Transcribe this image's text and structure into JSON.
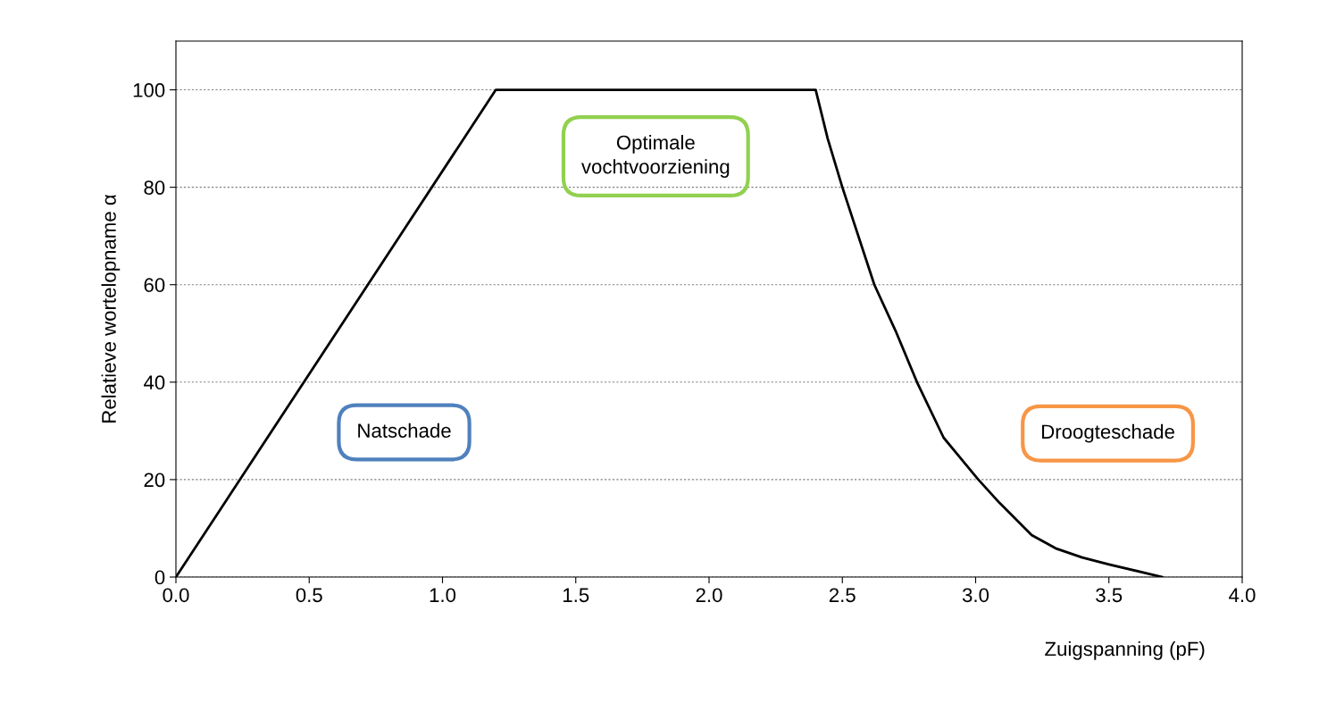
{
  "chart_data": {
    "type": "line",
    "xlabel": "Zuigspanning (pF)",
    "ylabel": "Relatieve wortelopname α",
    "x": [
      0,
      1.2,
      2.4,
      2.445,
      2.5,
      2.62,
      2.7,
      2.78,
      2.88,
      3.01,
      3.09,
      3.21,
      3.3,
      3.4,
      3.5,
      3.7
    ],
    "series": [
      {
        "color": "#000000",
        "values": [
          0,
          100,
          100,
          90,
          80,
          60,
          50.5,
          40,
          28.6,
          20,
          15.2,
          8.6,
          5.9,
          4,
          2.6,
          0
        ]
      }
    ],
    "xlim": [
      0,
      4
    ],
    "ylim": [
      0,
      110
    ],
    "xticks": [
      {
        "value": 0,
        "label": "0.0"
      },
      0.5,
      {
        "value": 1,
        "label": "1.0"
      },
      1.5,
      {
        "value": 2,
        "label": "2.0"
      },
      2.5,
      {
        "value": 3,
        "label": "3.0"
      },
      3.5,
      {
        "value": 4,
        "label": "4.0"
      }
    ],
    "yticks": [
      0,
      20,
      40,
      60,
      80,
      100
    ],
    "grid": "y",
    "marker": "none",
    "line_style": "solid",
    "legend": false,
    "annotations": [
      "Natschade",
      "Optimale\nvochtvoorziening",
      "Droogteschade"
    ]
  }
}
